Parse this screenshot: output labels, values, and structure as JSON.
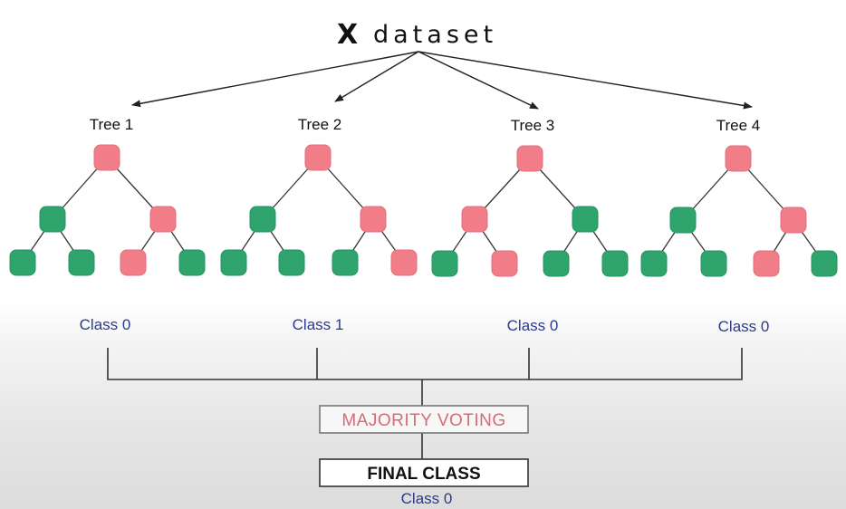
{
  "title": {
    "symbol": "X",
    "word": "dataset"
  },
  "trees": [
    {
      "label": "Tree 1",
      "root": "red",
      "level1": [
        "green",
        "red"
      ],
      "leaves": [
        "green",
        "green",
        "red",
        "green"
      ],
      "class_label": "Class 0"
    },
    {
      "label": "Tree 2",
      "root": "red",
      "level1": [
        "green",
        "red"
      ],
      "leaves": [
        "green",
        "green",
        "green",
        "red"
      ],
      "class_label": "Class 1"
    },
    {
      "label": "Tree 3",
      "root": "red",
      "level1": [
        "red",
        "green"
      ],
      "leaves": [
        "green",
        "red",
        "green",
        "green"
      ],
      "class_label": "Class 0"
    },
    {
      "label": "Tree 4",
      "root": "red",
      "level1": [
        "green",
        "red"
      ],
      "leaves": [
        "green",
        "green",
        "red",
        "green"
      ],
      "class_label": "Class 0"
    }
  ],
  "voting": {
    "majority_label": "MAJORITY VOTING",
    "final_label": "FINAL CLASS",
    "final_class": "Class 0"
  },
  "colors": {
    "red": "#f07d88",
    "green": "#2fa46d",
    "class_text": "#2a3a8c",
    "majority_text": "#d86a78"
  }
}
